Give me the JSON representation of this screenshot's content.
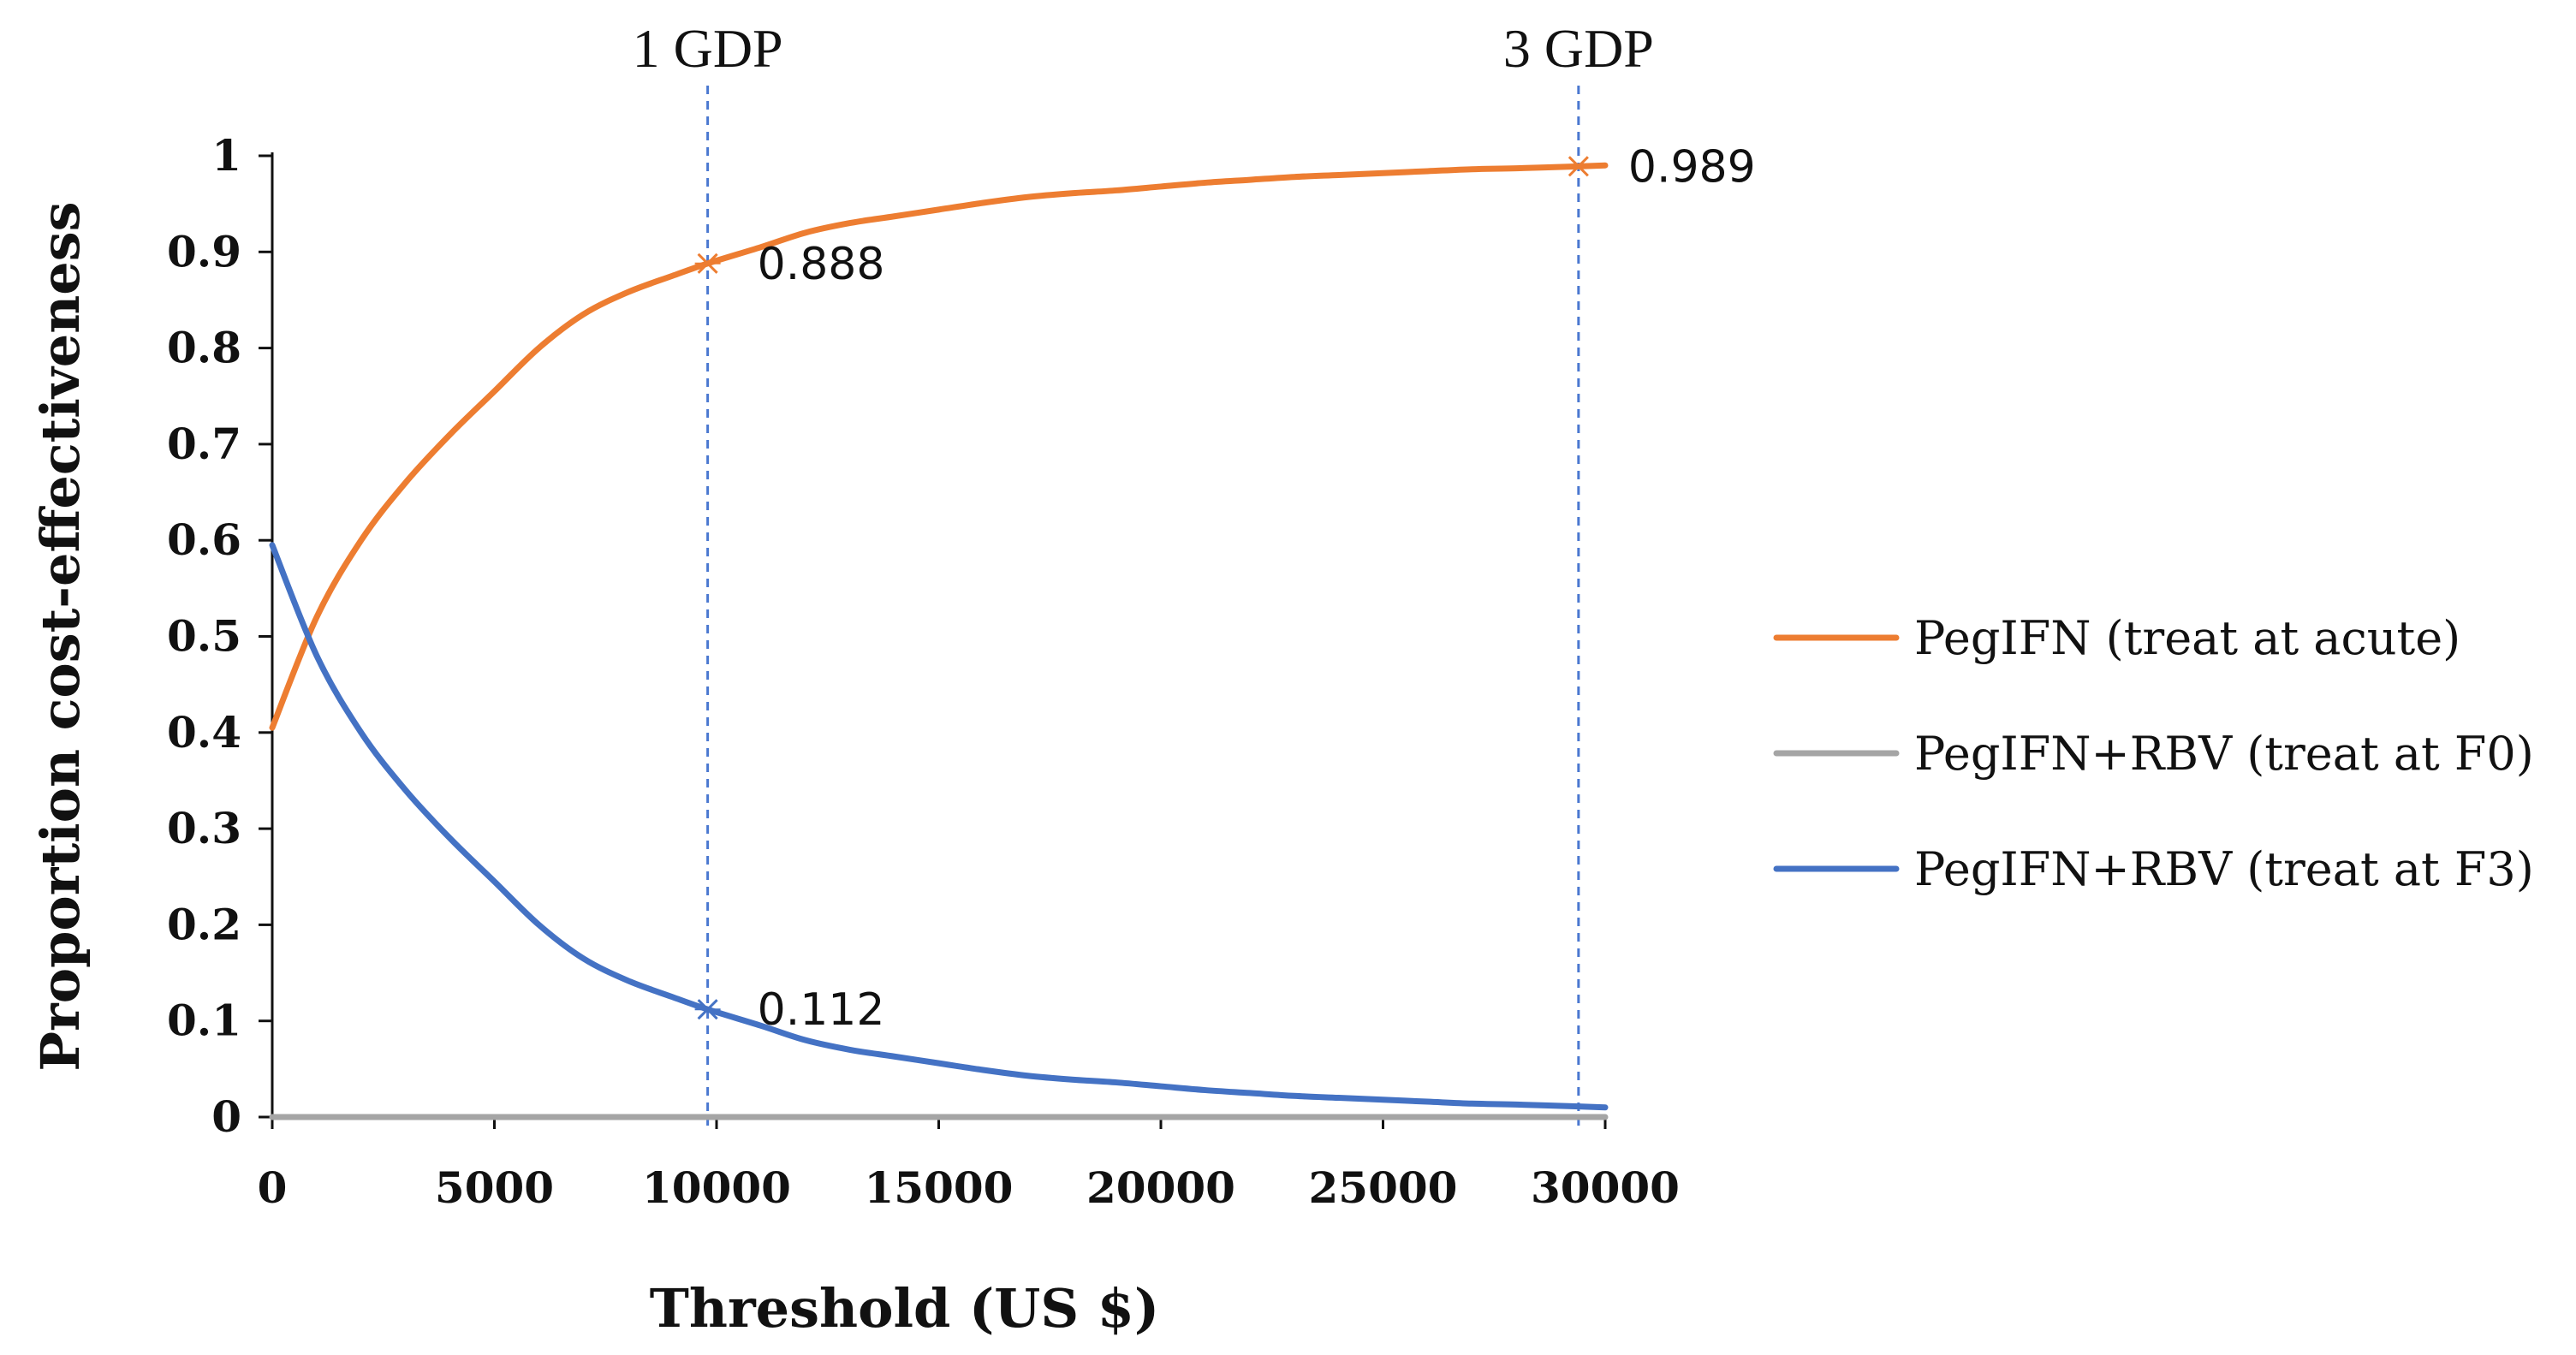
{
  "chart_data": {
    "type": "line",
    "title": "",
    "xlabel": "Threshold (US $)",
    "ylabel": "Proportion cost-effectiveness",
    "xlim": [
      0,
      30000
    ],
    "ylim": [
      0,
      1
    ],
    "x_ticks": [
      "0",
      "5000",
      "10000",
      "15000",
      "20000",
      "25000",
      "30000"
    ],
    "x_tick_values": [
      0,
      5000,
      10000,
      15000,
      20000,
      25000,
      30000
    ],
    "y_ticks": [
      "0",
      "0.1",
      "0.2",
      "0.3",
      "0.4",
      "0.5",
      "0.6",
      "0.7",
      "0.8",
      "0.9",
      "1"
    ],
    "y_tick_values": [
      0,
      0.1,
      0.2,
      0.3,
      0.4,
      0.5,
      0.6,
      0.7,
      0.8,
      0.9,
      1
    ],
    "grid": false,
    "legend_position": "right",
    "reference_lines": [
      {
        "label": "1 GDP",
        "x": 9800,
        "color": "#4a78d0"
      },
      {
        "label": "3 GDP",
        "x": 29400,
        "color": "#4a78d0"
      }
    ],
    "series": [
      {
        "name": "PegIFN (treat at acute)",
        "color": "#ed7d31",
        "x": [
          0,
          1000,
          2000,
          3000,
          4000,
          5000,
          6000,
          7000,
          8000,
          9000,
          9800,
          11000,
          12000,
          13000,
          14000,
          15000,
          16000,
          17000,
          18000,
          19000,
          20000,
          21000,
          22000,
          23000,
          24000,
          25000,
          26000,
          27000,
          28000,
          29400,
          30000
        ],
        "y": [
          0.405,
          0.52,
          0.6,
          0.66,
          0.71,
          0.755,
          0.8,
          0.835,
          0.858,
          0.875,
          0.888,
          0.905,
          0.92,
          0.93,
          0.937,
          0.944,
          0.951,
          0.957,
          0.961,
          0.964,
          0.968,
          0.972,
          0.975,
          0.978,
          0.98,
          0.982,
          0.984,
          0.986,
          0.987,
          0.989,
          0.99
        ]
      },
      {
        "name": "PegIFN+RBV (treat at F0)",
        "color": "#a5a5a5",
        "x": [
          0,
          30000
        ],
        "y": [
          0,
          0
        ]
      },
      {
        "name": "PegIFN+RBV (treat at F3)",
        "color": "#4472c4",
        "x": [
          0,
          1000,
          2000,
          3000,
          4000,
          5000,
          6000,
          7000,
          8000,
          9000,
          9800,
          11000,
          12000,
          13000,
          14000,
          15000,
          16000,
          17000,
          18000,
          19000,
          20000,
          21000,
          22000,
          23000,
          24000,
          25000,
          26000,
          27000,
          28000,
          29400,
          30000
        ],
        "y": [
          0.595,
          0.48,
          0.4,
          0.34,
          0.29,
          0.245,
          0.2,
          0.165,
          0.142,
          0.125,
          0.112,
          0.095,
          0.08,
          0.07,
          0.063,
          0.056,
          0.049,
          0.043,
          0.039,
          0.036,
          0.032,
          0.028,
          0.025,
          0.022,
          0.02,
          0.018,
          0.016,
          0.014,
          0.013,
          0.011,
          0.01
        ]
      }
    ],
    "annotations": [
      {
        "text": "0.888",
        "series": 0,
        "x": 9800,
        "y": 0.888
      },
      {
        "text": "0.989",
        "series": 0,
        "x": 29400,
        "y": 0.989
      },
      {
        "text": "0.112",
        "series": 2,
        "x": 9800,
        "y": 0.112
      }
    ]
  }
}
